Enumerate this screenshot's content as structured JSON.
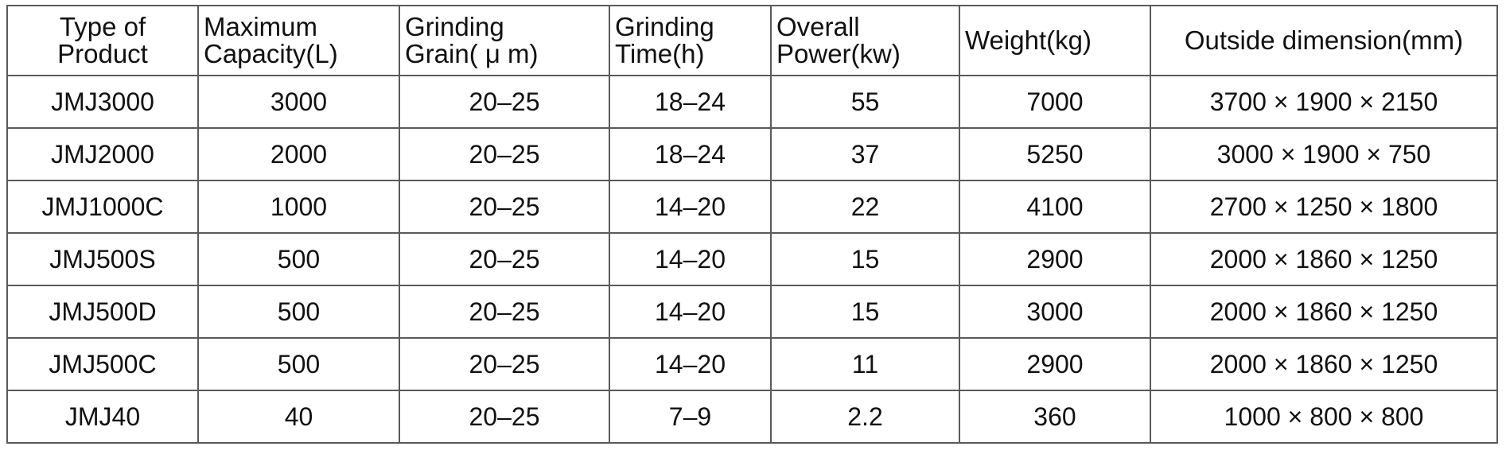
{
  "table": {
    "headers": [
      {
        "lines": [
          "Type of",
          "Product"
        ],
        "align": "center"
      },
      {
        "lines": [
          "Maximum",
          "Capacity(L)"
        ],
        "align": "left"
      },
      {
        "lines": [
          "Grinding",
          "Grain( μ m)"
        ],
        "align": "left"
      },
      {
        "lines": [
          "Grinding",
          "Time(h)"
        ],
        "align": "left"
      },
      {
        "lines": [
          "Overall",
          "Power(kw)"
        ],
        "align": "left"
      },
      {
        "lines": [
          "Weight(kg)"
        ],
        "align": "left"
      },
      {
        "lines": [
          "Outside dimension(mm)"
        ],
        "align": "center"
      }
    ],
    "rows": [
      [
        "JMJ3000",
        "3000",
        "20–25",
        "18–24",
        "55",
        "7000",
        "3700 × 1900 × 2150"
      ],
      [
        "JMJ2000",
        "2000",
        "20–25",
        "18–24",
        "37",
        "5250",
        "3000 × 1900 × 750"
      ],
      [
        "JMJ1000C",
        "1000",
        "20–25",
        "14–20",
        "22",
        "4100",
        "2700 × 1250 × 1800"
      ],
      [
        "JMJ500S",
        "500",
        "20–25",
        "14–20",
        "15",
        "2900",
        "2000 × 1860 × 1250"
      ],
      [
        "JMJ500D",
        "500",
        "20–25",
        "14–20",
        "15",
        "3000",
        "2000 × 1860 × 1250"
      ],
      [
        "JMJ500C",
        "500",
        "20–25",
        "14–20",
        "11",
        "2900",
        "2000 × 1860 × 1250"
      ],
      [
        "JMJ40",
        "40",
        "20–25",
        "7–9",
        "2.2",
        "360",
        "1000 × 800 × 800"
      ]
    ]
  }
}
